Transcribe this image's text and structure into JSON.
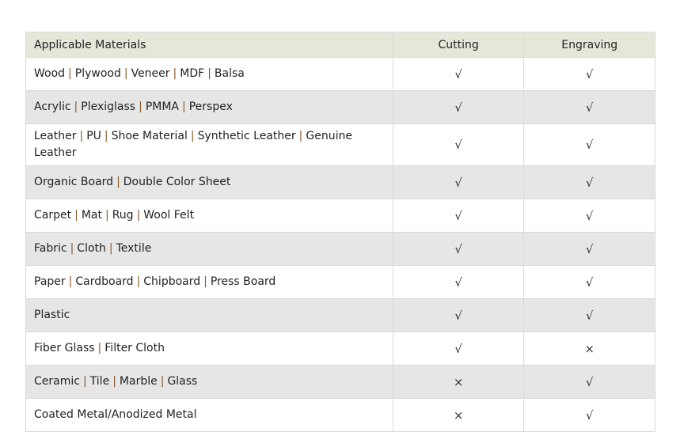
{
  "headers": [
    "Applicable Materials",
    "Cutting",
    "Engraving"
  ],
  "separator": "|",
  "rows": [
    {
      "materials": [
        "Wood",
        "Plywood",
        "Veneer",
        "MDF",
        "Balsa"
      ],
      "cutting": "√",
      "engraving": "√"
    },
    {
      "materials": [
        "Acrylic",
        "Plexiglass",
        "PMMA",
        "Perspex"
      ],
      "cutting": "√",
      "engraving": "√"
    },
    {
      "materials": [
        "Leather",
        "PU",
        "Shoe Material",
        "Synthetic Leather",
        "Genuine Leather"
      ],
      "cutting": "√",
      "engraving": "√"
    },
    {
      "materials": [
        "Organic Board",
        "Double Color Sheet"
      ],
      "cutting": "√",
      "engraving": "√"
    },
    {
      "materials": [
        "Carpet",
        "Mat",
        "Rug",
        "Wool Felt"
      ],
      "cutting": "√",
      "engraving": "√"
    },
    {
      "materials": [
        "Fabric",
        "Cloth",
        "Textile"
      ],
      "cutting": "√",
      "engraving": "√"
    },
    {
      "materials": [
        "Paper",
        "Cardboard",
        "Chipboard",
        "Press Board"
      ],
      "cutting": "√",
      "engraving": "√"
    },
    {
      "materials": [
        "Plastic"
      ],
      "cutting": "√",
      "engraving": "√"
    },
    {
      "materials": [
        "Fiber Glass",
        "Filter Cloth"
      ],
      "cutting": "√",
      "engraving": "×"
    },
    {
      "materials": [
        "Ceramic",
        "Tile",
        "Marble",
        "Glass"
      ],
      "cutting": "×",
      "engraving": "√"
    },
    {
      "materials": [
        "Coated Metal/Anodized Metal"
      ],
      "cutting": "×",
      "engraving": "√"
    }
  ]
}
